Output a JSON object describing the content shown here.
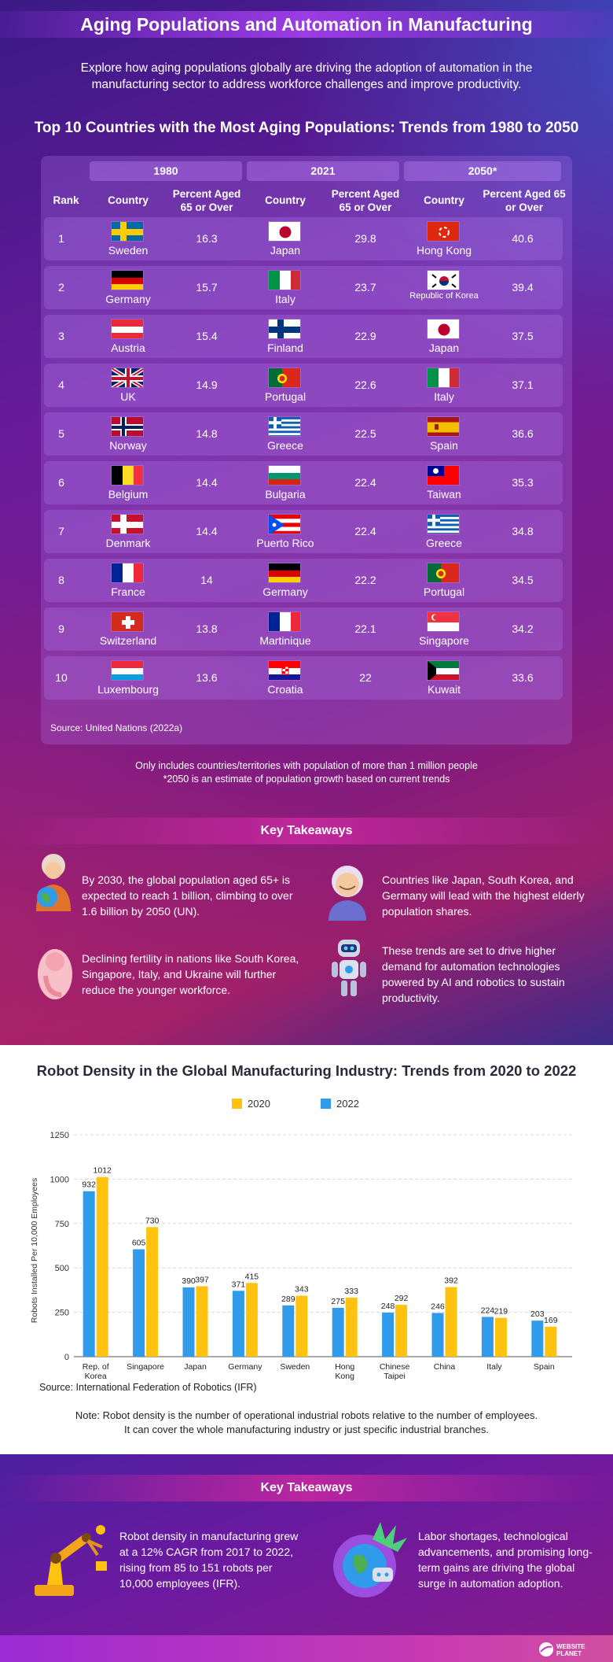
{
  "header": {
    "title": "Aging Populations and Automation in Manufacturing",
    "intro": "Explore how aging populations globally are driving the adoption of automation in the manufacturing sector to address workforce challenges and improve productivity."
  },
  "table": {
    "title": "Top 10 Countries with the Most Aging Populations: Trends from 1980 to 2050",
    "years": [
      "1980",
      "2021",
      "2050*"
    ],
    "rank_header": "Rank",
    "country_header": "Country",
    "percent_header": "Percent Aged 65 or Over",
    "rows": [
      {
        "rank": "1",
        "c1980": "Sweden",
        "p1980": "16.3",
        "c2021": "Japan",
        "p2021": "29.8",
        "c2050": "Hong Kong",
        "p2050": "40.6"
      },
      {
        "rank": "2",
        "c1980": "Germany",
        "p1980": "15.7",
        "c2021": "Italy",
        "p2021": "23.7",
        "c2050": "Republic of Korea",
        "p2050": "39.4"
      },
      {
        "rank": "3",
        "c1980": "Austria",
        "p1980": "15.4",
        "c2021": "Finland",
        "p2021": "22.9",
        "c2050": "Japan",
        "p2050": "37.5"
      },
      {
        "rank": "4",
        "c1980": "UK",
        "p1980": "14.9",
        "c2021": "Portugal",
        "p2021": "22.6",
        "c2050": "Italy",
        "p2050": "37.1"
      },
      {
        "rank": "5",
        "c1980": "Norway",
        "p1980": "14.8",
        "c2021": "Greece",
        "p2021": "22.5",
        "c2050": "Spain",
        "p2050": "36.6"
      },
      {
        "rank": "6",
        "c1980": "Belgium",
        "p1980": "14.4",
        "c2021": "Bulgaria",
        "p2021": "22.4",
        "c2050": "Taiwan",
        "p2050": "35.3"
      },
      {
        "rank": "7",
        "c1980": "Denmark",
        "p1980": "14.4",
        "c2021": "Puerto Rico",
        "p2021": "22.4",
        "c2050": "Greece",
        "p2050": "34.8"
      },
      {
        "rank": "8",
        "c1980": "France",
        "p1980": "14",
        "c2021": "Germany",
        "p2021": "22.2",
        "c2050": "Portugal",
        "p2050": "34.5"
      },
      {
        "rank": "9",
        "c1980": "Switzerland",
        "p1980": "13.8",
        "c2021": "Martinique",
        "p2021": "22.1",
        "c2050": "Singapore",
        "p2050": "34.2"
      },
      {
        "rank": "10",
        "c1980": "Luxembourg",
        "p1980": "13.6",
        "c2021": "Croatia",
        "p2021": "22",
        "c2050": "Kuwait",
        "p2050": "33.6"
      }
    ],
    "source": "Source: United Nations (2022a)",
    "note_line1": "Only includes countries/territories with population of more than 1 million people",
    "note_line2": "*2050 is an estimate of population growth based on current trends"
  },
  "takeaways1": {
    "heading": "Key Takeaways",
    "items": [
      {
        "icon": "elderly-woman-globe-icon",
        "text": "By 2030, the global population aged 65+ is expected to reach 1 billion, climbing to over 1.6 billion by 2050 (UN)."
      },
      {
        "icon": "elderly-man-icon",
        "text": "Countries like Japan, South Korea, and Germany will lead with the highest elderly population shares."
      },
      {
        "icon": "fetus-icon",
        "text": "Declining fertility in nations like South Korea, Singapore, Italy, and Ukraine will further reduce the younger workforce."
      },
      {
        "icon": "robot-icon",
        "text": "These trends are set to drive higher demand for automation technologies powered by AI and robotics to sustain productivity."
      }
    ]
  },
  "chart_data": {
    "type": "bar",
    "title": "Robot Density in the Global Manufacturing Industry: Trends from 2020 to 2022",
    "ylabel": "Robots Installed Per 10,000 Employees",
    "xlabel": "",
    "ylim": [
      0,
      1250
    ],
    "yticks": [
      0,
      250,
      500,
      750,
      1000,
      1250
    ],
    "grid": true,
    "legend_position": "top-center",
    "categories": [
      "Rep. of Korea",
      "Singapore",
      "Japan",
      "Germany",
      "Sweden",
      "Hong Kong",
      "Chinese Taipei",
      "China",
      "Italy",
      "Spain"
    ],
    "category_lines": [
      [
        "Rep. of",
        "Korea"
      ],
      [
        "Singapore"
      ],
      [
        "Japan"
      ],
      [
        "Germany"
      ],
      [
        "Sweden"
      ],
      [
        "Hong",
        "Kong"
      ],
      [
        "Chinese",
        "Taipei"
      ],
      [
        "China"
      ],
      [
        "Italy"
      ],
      [
        "Spain"
      ]
    ],
    "series": [
      {
        "name": "2022",
        "color": "#2f9bea",
        "values": [
          932,
          605,
          390,
          371,
          289,
          275,
          248,
          246,
          224,
          203
        ]
      },
      {
        "name": "2020",
        "color": "#ffc20e",
        "values": [
          1012,
          730,
          397,
          415,
          343,
          333,
          292,
          392,
          219,
          169
        ]
      }
    ],
    "legend_order": [
      "2020",
      "2022"
    ],
    "source": "Source: International Federation of Robotics (IFR)",
    "note_line1": "Note: Robot density is the number of operational industrial robots relative to the number of employees.",
    "note_line2": "It can cover the whole manufacturing industry or just specific industrial branches."
  },
  "takeaways2": {
    "heading": "Key Takeaways",
    "items": [
      {
        "icon": "robotic-arm-icon",
        "text": "Robot density in manufacturing grew at a 12% CAGR from 2017 to 2022, rising from 85 to 151 robots per 10,000 employees (IFR)."
      },
      {
        "icon": "globe-gear-icon",
        "text": "Labor shortages, technological advancements, and promising long-term gains are driving the global surge in automation adoption."
      }
    ]
  },
  "footer": {
    "logo_line1": "WEBSITE",
    "logo_line2": "PLANET"
  },
  "colors": {
    "bar_2020": "#ffc20e",
    "bar_2022": "#2f9bea",
    "accent": "#9c3ce6"
  }
}
